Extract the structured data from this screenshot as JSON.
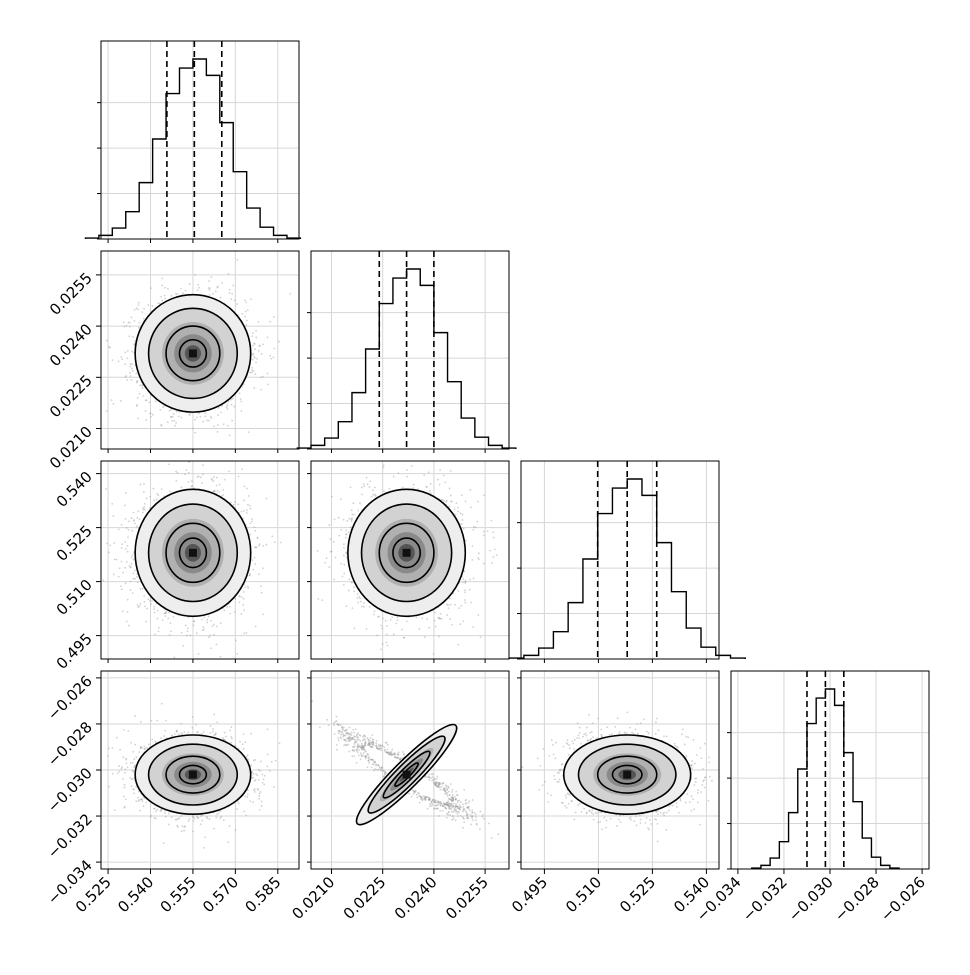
{
  "chart_data": {
    "type": "corner",
    "parameters": [
      {
        "name": "",
        "range": [
          0.5225,
          0.5925
        ],
        "mean": 0.555,
        "sigma": 0.0095,
        "quantiles": [
          0.5458,
          0.5555,
          0.5652
        ],
        "ticks": [
          "0.525",
          "0.540",
          "0.555",
          "0.570",
          "0.585"
        ],
        "tick_values": [
          0.525,
          0.54,
          0.555,
          0.57,
          0.585
        ],
        "hist_counts": [
          1,
          4,
          12,
          30,
          62,
          110,
          160,
          188,
          198,
          180,
          128,
          74,
          34,
          13,
          4,
          1
        ]
      },
      {
        "name": "",
        "range": [
          0.0204,
          0.0262
        ],
        "mean": 0.0232,
        "sigma": 0.0008,
        "quantiles": [
          0.0224,
          0.0232,
          0.024
        ],
        "ticks": [
          "0.0210",
          "0.0225",
          "0.0240",
          "0.0255"
        ],
        "tick_values": [
          0.021,
          0.0225,
          0.024,
          0.0255
        ],
        "hist_counts": [
          1,
          4,
          12,
          30,
          62,
          110,
          160,
          188,
          198,
          180,
          128,
          74,
          34,
          13,
          4,
          1
        ]
      },
      {
        "name": "",
        "range": [
          0.4885,
          0.5435
        ],
        "mean": 0.518,
        "sigma": 0.0082,
        "quantiles": [
          0.5098,
          0.518,
          0.5262
        ],
        "ticks": [
          "0.495",
          "0.510",
          "0.525",
          "0.540"
        ],
        "tick_values": [
          0.495,
          0.51,
          0.525,
          0.54
        ],
        "hist_counts": [
          1,
          4,
          12,
          30,
          62,
          110,
          160,
          188,
          198,
          180,
          128,
          74,
          34,
          13,
          4,
          1
        ]
      },
      {
        "name": "",
        "range": [
          -0.0343,
          -0.0257
        ],
        "mean": -0.0302,
        "sigma": 0.0008,
        "quantiles": [
          -0.031,
          -0.0302,
          -0.0294
        ],
        "ticks": [
          "−0.034",
          "−0.032",
          "−0.030",
          "−0.028",
          "−0.026"
        ],
        "tick_values": [
          -0.034,
          -0.032,
          -0.03,
          -0.028,
          -0.026
        ],
        "hist_counts": [
          1,
          4,
          12,
          30,
          62,
          110,
          160,
          188,
          198,
          180,
          128,
          74,
          34,
          13,
          4,
          1
        ]
      }
    ],
    "correlations": {
      "1-0": 0.0,
      "2-0": 0.0,
      "2-1": 0.0,
      "3-0": 0.0,
      "3-1": -0.93,
      "3-2": 0.0
    },
    "grid": true,
    "colors": {
      "points": "#9a9a9a",
      "contours": "#000000",
      "histogram": "#000000"
    }
  }
}
